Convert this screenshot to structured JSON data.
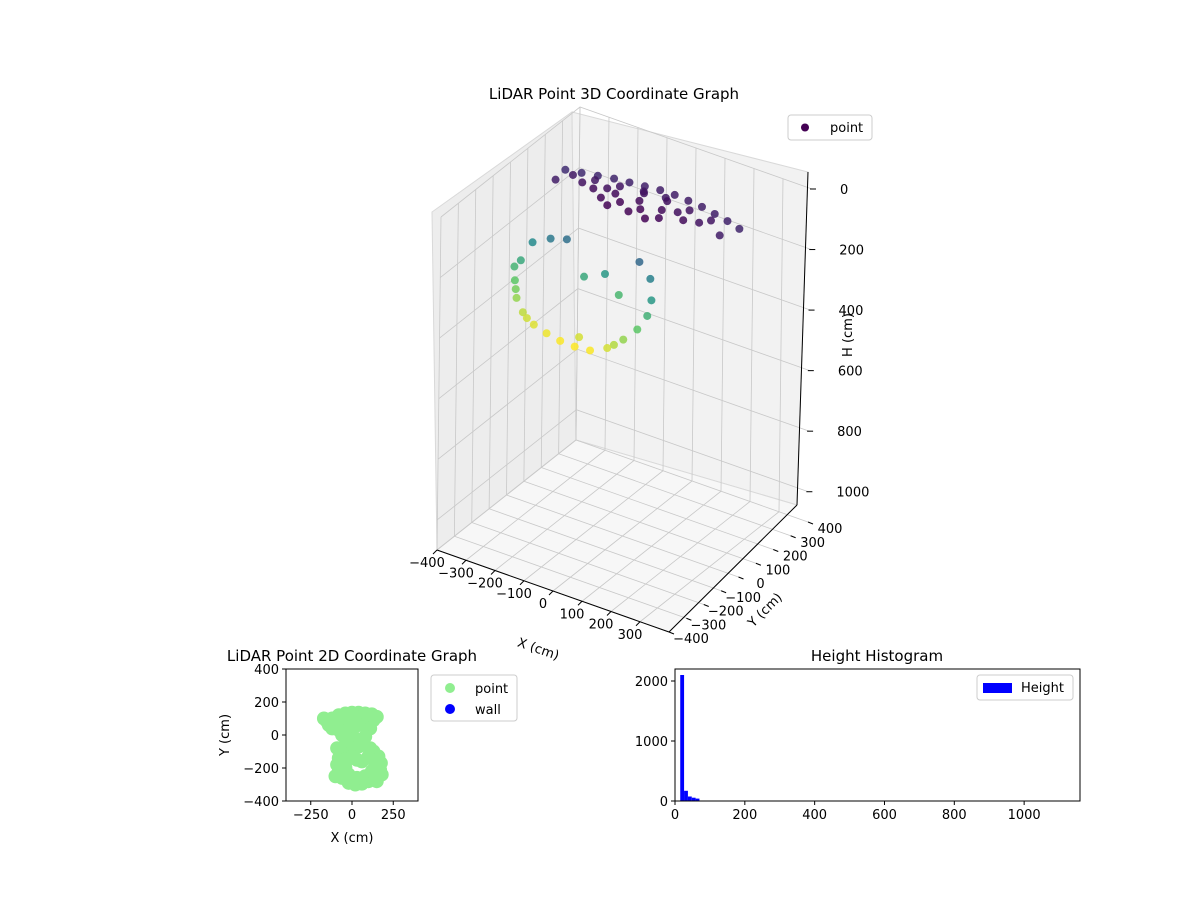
{
  "chart_data": [
    {
      "type": "scatter3d",
      "title": "LiDAR Point 3D Coordinate Graph",
      "xlabel": "X (cm)",
      "ylabel": "Y (cm)",
      "zlabel": "H (cm)",
      "xlim": [
        -400,
        400
      ],
      "ylim": [
        -400,
        400
      ],
      "zlim": [
        0,
        1100
      ],
      "z_inverted": true,
      "xticks": [
        "−400",
        "−300",
        "−200",
        "−100",
        "0",
        "100",
        "200",
        "300"
      ],
      "yticks": [
        "−400",
        "−300",
        "−200",
        "−100",
        "0",
        "100",
        "200",
        "300",
        "400"
      ],
      "zticks": [
        "0",
        "200",
        "400",
        "600",
        "800",
        "1000"
      ],
      "legend": {
        "entries": [
          "point"
        ],
        "placement": "top-right"
      },
      "colormap": "viridis",
      "series": [
        {
          "name": "point",
          "points": [
            {
              "x": -300,
              "y": 150,
              "h": 60
            },
            {
              "x": -250,
              "y": 160,
              "h": 58
            },
            {
              "x": -200,
              "y": 170,
              "h": 55
            },
            {
              "x": -150,
              "y": 180,
              "h": 52
            },
            {
              "x": -100,
              "y": 185,
              "h": 50
            },
            {
              "x": -50,
              "y": 190,
              "h": 48
            },
            {
              "x": 0,
              "y": 195,
              "h": 46
            },
            {
              "x": 50,
              "y": 195,
              "h": 45
            },
            {
              "x": 100,
              "y": 190,
              "h": 45
            },
            {
              "x": 150,
              "y": 185,
              "h": 46
            },
            {
              "x": 200,
              "y": 175,
              "h": 48
            },
            {
              "x": 250,
              "y": 165,
              "h": 50
            },
            {
              "x": 300,
              "y": 150,
              "h": 52
            },
            {
              "x": -250,
              "y": 110,
              "h": 42
            },
            {
              "x": -180,
              "y": 120,
              "h": 40
            },
            {
              "x": -100,
              "y": 130,
              "h": 38
            },
            {
              "x": -20,
              "y": 135,
              "h": 36
            },
            {
              "x": 60,
              "y": 135,
              "h": 35
            },
            {
              "x": 140,
              "y": 130,
              "h": 36
            },
            {
              "x": 220,
              "y": 120,
              "h": 38
            },
            {
              "x": -150,
              "y": 60,
              "h": 30
            },
            {
              "x": -80,
              "y": 70,
              "h": 28
            },
            {
              "x": 0,
              "y": 75,
              "h": 27
            },
            {
              "x": 80,
              "y": 70,
              "h": 28
            },
            {
              "x": 160,
              "y": 60,
              "h": 30
            },
            {
              "x": -100,
              "y": 20,
              "h": 25
            },
            {
              "x": -40,
              "y": 30,
              "h": 24
            },
            {
              "x": 30,
              "y": 30,
              "h": 24
            },
            {
              "x": 100,
              "y": 20,
              "h": 25
            },
            {
              "x": -60,
              "y": -10,
              "h": 23
            },
            {
              "x": 10,
              "y": -5,
              "h": 22
            },
            {
              "x": 70,
              "y": -10,
              "h": 23
            },
            {
              "x": -120,
              "y": 90,
              "h": 33
            },
            {
              "x": 120,
              "y": 95,
              "h": 33
            },
            {
              "x": -200,
              "y": 80,
              "h": 36
            },
            {
              "x": 200,
              "y": 85,
              "h": 36
            },
            {
              "x": -30,
              "y": 150,
              "h": 40
            },
            {
              "x": 40,
              "y": 160,
              "h": 42
            },
            {
              "x": -280,
              "y": 60,
              "h": 45
            },
            {
              "x": 280,
              "y": 70,
              "h": 44
            },
            {
              "x": -250,
              "y": -120,
              "h": 160
            },
            {
              "x": -260,
              "y": -170,
              "h": 200
            },
            {
              "x": -250,
              "y": -220,
              "h": 240
            },
            {
              "x": -220,
              "y": -260,
              "h": 270
            },
            {
              "x": -180,
              "y": -290,
              "h": 290
            },
            {
              "x": -130,
              "y": -310,
              "h": 305
            },
            {
              "x": -80,
              "y": -320,
              "h": 312
            },
            {
              "x": -30,
              "y": -325,
              "h": 318
            },
            {
              "x": 20,
              "y": -325,
              "h": 320
            },
            {
              "x": 70,
              "y": -320,
              "h": 318
            },
            {
              "x": 120,
              "y": -305,
              "h": 300
            },
            {
              "x": 160,
              "y": -280,
              "h": 270
            },
            {
              "x": 190,
              "y": -250,
              "h": 240
            },
            {
              "x": 200,
              "y": -210,
              "h": 210
            },
            {
              "x": 190,
              "y": -170,
              "h": 180
            },
            {
              "x": -200,
              "y": -100,
              "h": 140
            },
            {
              "x": -150,
              "y": -90,
              "h": 130
            },
            {
              "x": 150,
              "y": -110,
              "h": 150
            },
            {
              "x": 100,
              "y": -90,
              "h": 120
            },
            {
              "x": -270,
              "y": -190,
              "h": 215
            },
            {
              "x": -235,
              "y": -240,
              "h": 255
            },
            {
              "x": 0,
              "y": -120,
              "h": 180
            },
            {
              "x": -60,
              "y": -140,
              "h": 200
            },
            {
              "x": 60,
              "y": -140,
              "h": 220
            },
            {
              "x": 140,
              "y": -300,
              "h": 285
            },
            {
              "x": -160,
              "y": -300,
              "h": 298
            },
            {
              "x": 20,
              "y": -300,
              "h": 300
            }
          ]
        }
      ]
    },
    {
      "type": "scatter",
      "title": "LiDAR Point 2D Coordinate Graph",
      "xlabel": "X (cm)",
      "ylabel": "Y (cm)",
      "xlim": [
        -400,
        400
      ],
      "ylim": [
        -400,
        400
      ],
      "xticks": [
        "−250",
        "0",
        "250"
      ],
      "yticks": [
        "400",
        "200",
        "0",
        "−200",
        "−400"
      ],
      "legend": {
        "entries": [
          "point",
          "wall"
        ],
        "placement": "outside-right"
      },
      "colors": {
        "point": "#90ee90",
        "wall": "#0000ff"
      },
      "series": [
        {
          "name": "point",
          "points": [
            {
              "x": -150,
              "y": 80
            },
            {
              "x": -120,
              "y": 100
            },
            {
              "x": -80,
              "y": 120
            },
            {
              "x": -40,
              "y": 130
            },
            {
              "x": 0,
              "y": 135
            },
            {
              "x": 40,
              "y": 135
            },
            {
              "x": 80,
              "y": 130
            },
            {
              "x": 120,
              "y": 125
            },
            {
              "x": -140,
              "y": 60
            },
            {
              "x": -100,
              "y": 70
            },
            {
              "x": -60,
              "y": 80
            },
            {
              "x": -20,
              "y": 100
            },
            {
              "x": 20,
              "y": 110
            },
            {
              "x": 60,
              "y": 110
            },
            {
              "x": 100,
              "y": 100
            },
            {
              "x": 130,
              "y": 90
            },
            {
              "x": -120,
              "y": 40
            },
            {
              "x": -80,
              "y": 30
            },
            {
              "x": -40,
              "y": 20
            },
            {
              "x": 0,
              "y": 40
            },
            {
              "x": 40,
              "y": 60
            },
            {
              "x": 80,
              "y": 60
            },
            {
              "x": 110,
              "y": 40
            },
            {
              "x": -60,
              "y": 0
            },
            {
              "x": -20,
              "y": -10
            },
            {
              "x": 20,
              "y": -20
            },
            {
              "x": 60,
              "y": -30
            },
            {
              "x": 80,
              "y": -10
            },
            {
              "x": -40,
              "y": -60
            },
            {
              "x": 0,
              "y": -80
            },
            {
              "x": 40,
              "y": -70
            },
            {
              "x": 70,
              "y": -60
            },
            {
              "x": -60,
              "y": -110
            },
            {
              "x": -80,
              "y": -140
            },
            {
              "x": -90,
              "y": -180
            },
            {
              "x": -80,
              "y": -220
            },
            {
              "x": -60,
              "y": -260
            },
            {
              "x": -20,
              "y": -290
            },
            {
              "x": 20,
              "y": -300
            },
            {
              "x": 60,
              "y": -295
            },
            {
              "x": 100,
              "y": -280
            },
            {
              "x": 140,
              "y": -250
            },
            {
              "x": 170,
              "y": -210
            },
            {
              "x": 175,
              "y": -170
            },
            {
              "x": 160,
              "y": -130
            },
            {
              "x": 130,
              "y": -100
            },
            {
              "x": 100,
              "y": -130
            },
            {
              "x": 60,
              "y": -160
            },
            {
              "x": 30,
              "y": -150
            },
            {
              "x": 0,
              "y": -130
            },
            {
              "x": -30,
              "y": -150
            },
            {
              "x": -40,
              "y": -200
            },
            {
              "x": -20,
              "y": -240
            },
            {
              "x": 30,
              "y": -260
            },
            {
              "x": 80,
              "y": -250
            },
            {
              "x": 120,
              "y": -220
            },
            {
              "x": 140,
              "y": -180
            },
            {
              "x": -100,
              "y": -250
            },
            {
              "x": 150,
              "y": -280
            },
            {
              "x": 180,
              "y": -240
            },
            {
              "x": -170,
              "y": 100
            },
            {
              "x": 150,
              "y": 110
            },
            {
              "x": -90,
              "y": -80
            },
            {
              "x": 110,
              "y": -80
            }
          ]
        },
        {
          "name": "wall",
          "points": []
        }
      ]
    },
    {
      "type": "bar",
      "title": "Height Histogram",
      "xlim": [
        0,
        1160
      ],
      "ylim": [
        0,
        2200
      ],
      "xticks": [
        "0",
        "200",
        "400",
        "600",
        "800",
        "1000"
      ],
      "yticks": [
        "0",
        "1000",
        "2000"
      ],
      "legend": {
        "entries": [
          "Height"
        ],
        "placement": "top-right"
      },
      "colors": {
        "bar": "#0000ff"
      },
      "bins": [
        {
          "start": 15,
          "end": 26,
          "count": 2100
        },
        {
          "start": 26,
          "end": 37,
          "count": 170
        },
        {
          "start": 37,
          "end": 48,
          "count": 75
        },
        {
          "start": 48,
          "end": 59,
          "count": 55
        },
        {
          "start": 59,
          "end": 70,
          "count": 40
        },
        {
          "start": 70,
          "end": 81,
          "count": 6
        },
        {
          "start": 114,
          "end": 125,
          "count": 8
        },
        {
          "start": 125,
          "end": 136,
          "count": 6
        },
        {
          "start": 136,
          "end": 147,
          "count": 2
        }
      ]
    }
  ]
}
